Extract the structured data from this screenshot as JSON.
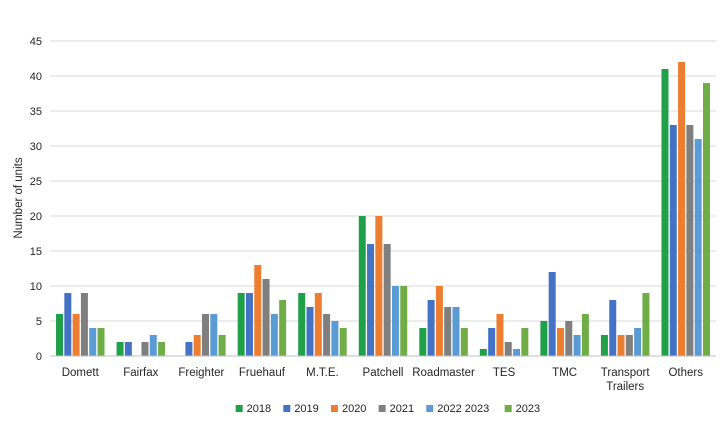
{
  "chart_data": {
    "type": "bar",
    "ylabel": "Number of units",
    "ylim": [
      0,
      45
    ],
    "yticks": [
      0,
      5,
      10,
      15,
      20,
      25,
      30,
      35,
      40,
      45
    ],
    "grid": true,
    "legend_position": "bottom",
    "categories": [
      "Domett",
      "Fairfax",
      "Freighter",
      "Fruehauf",
      "M.T.E.",
      "Patchell",
      "Roadmaster",
      "TES",
      "TMC",
      "Transport Trailers",
      "Others"
    ],
    "series": [
      {
        "name": "2018",
        "color": "#21a04a",
        "values": [
          6,
          2,
          0,
          9,
          9,
          20,
          4,
          1,
          5,
          3,
          41
        ]
      },
      {
        "name": "2019",
        "color": "#4472c4",
        "values": [
          9,
          2,
          2,
          9,
          7,
          16,
          8,
          4,
          12,
          8,
          33
        ]
      },
      {
        "name": "2020",
        "color": "#ed7d31",
        "values": [
          6,
          0,
          3,
          13,
          9,
          20,
          10,
          6,
          4,
          3,
          42
        ]
      },
      {
        "name": "2021",
        "color": "#7f7f7f",
        "values": [
          9,
          2,
          6,
          11,
          6,
          16,
          7,
          2,
          5,
          3,
          33
        ]
      },
      {
        "name": "2022 2023",
        "color": "#5b9bd5",
        "values": [
          4,
          3,
          6,
          6,
          5,
          10,
          7,
          1,
          3,
          4,
          31
        ]
      },
      {
        "name": "2023",
        "color": "#70ad47",
        "values": [
          4,
          2,
          3,
          8,
          4,
          10,
          4,
          4,
          6,
          9,
          39
        ]
      }
    ]
  }
}
